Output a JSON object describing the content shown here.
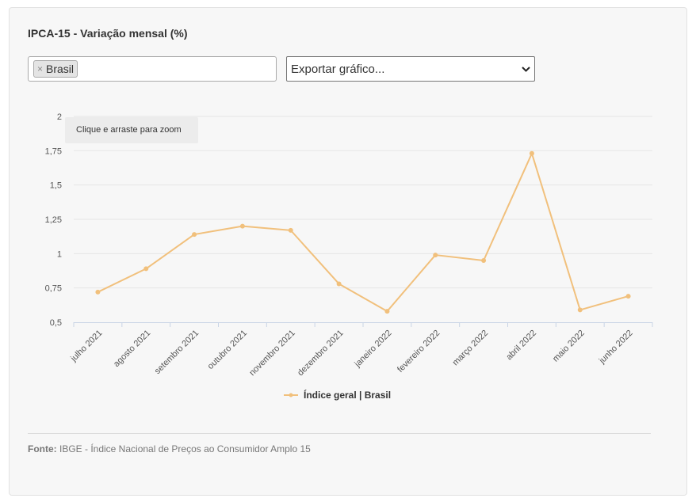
{
  "header": {
    "title": "IPCA-15 - Variação mensal (%)"
  },
  "filter": {
    "tag_label": "Brasil",
    "remove_symbol": "×"
  },
  "export": {
    "label": "Exportar gráfico..."
  },
  "zoom_tip": "Clique e arraste para zoom",
  "legend": {
    "label": "Índice geral | Brasil"
  },
  "source": {
    "prefix": "Fonte:",
    "text": " IBGE - Índice Nacional de Preços ao Consumidor Amplo 15"
  },
  "colors": {
    "series": "#f1c07c",
    "grid": "#e6e6e6",
    "axis": "#c9d4e6"
  },
  "chart_data": {
    "type": "line",
    "categories": [
      "julho 2021",
      "agosto 2021",
      "setembro 2021",
      "outubro 2021",
      "novembro 2021",
      "dezembro 2021",
      "janeiro 2022",
      "fevereiro 2022",
      "março 2022",
      "abril 2022",
      "maio 2022",
      "junho 2022"
    ],
    "series": [
      {
        "name": "Índice geral | Brasil",
        "values": [
          0.72,
          0.89,
          1.14,
          1.2,
          1.17,
          0.78,
          0.58,
          0.99,
          0.95,
          1.73,
          0.59,
          0.69
        ]
      }
    ],
    "ylim": [
      0.5,
      2
    ],
    "yticks": [
      "0,5",
      "0,75",
      "1",
      "1,25",
      "1,5",
      "1,75",
      "2"
    ],
    "ytick_values": [
      0.5,
      0.75,
      1,
      1.25,
      1.5,
      1.75,
      2
    ],
    "grid": true,
    "legend_position": "bottom"
  }
}
